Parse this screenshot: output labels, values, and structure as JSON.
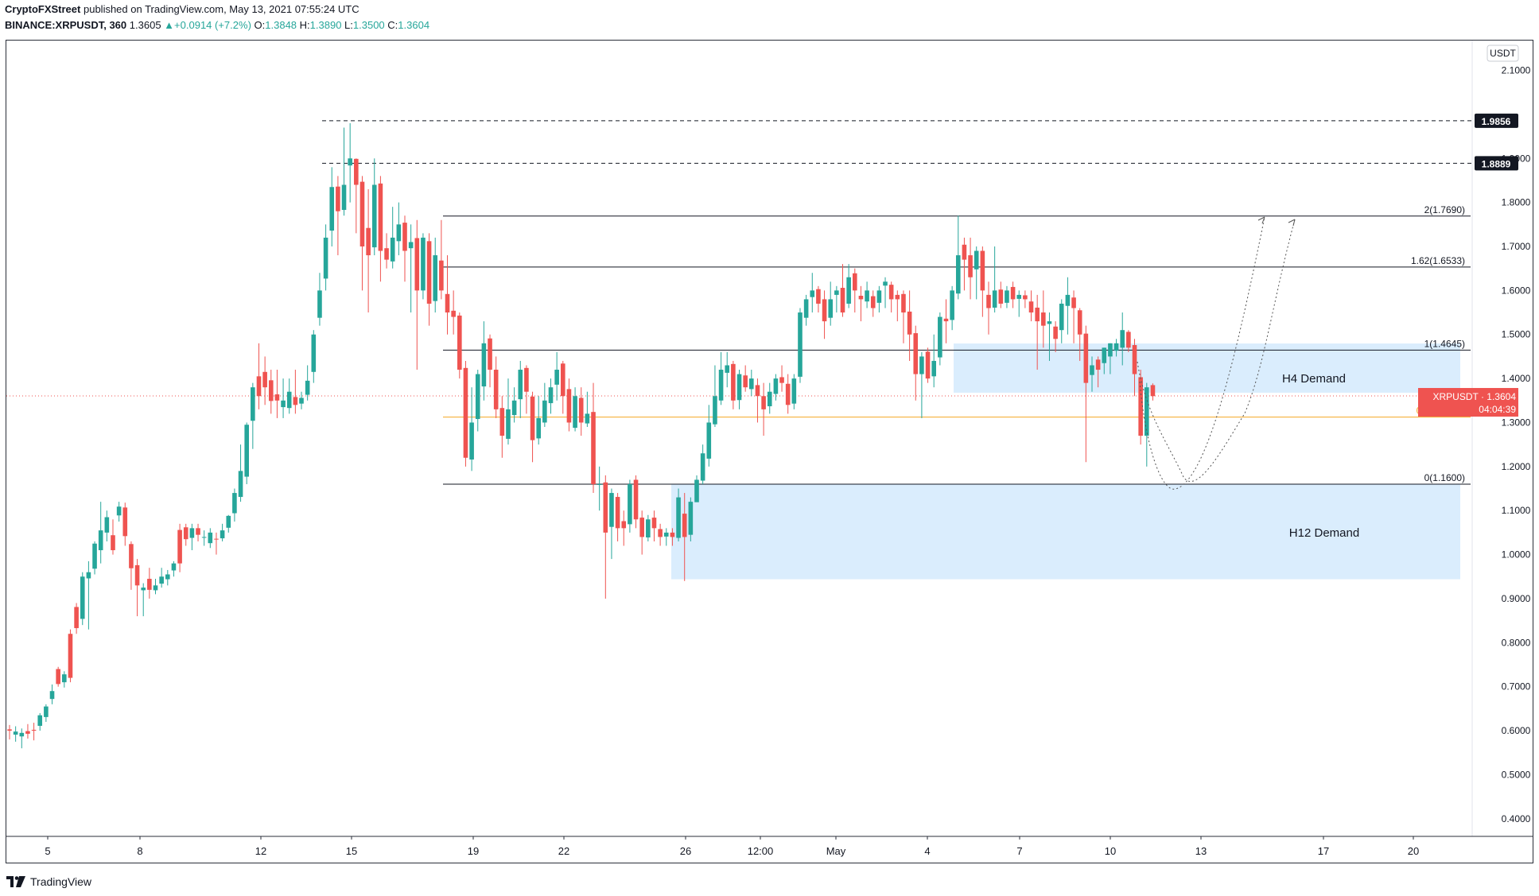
{
  "header": {
    "author": "CryptoFXStreet",
    "published": "published on TradingView.com, May 13, 2021 07:55:24 UTC",
    "symbol": "BINANCE:XRPUSDT, 360",
    "last": "1.3605",
    "change": "+0.0914 (+7.2%)",
    "o_label": "O:",
    "o": "1.3848",
    "h_label": "H:",
    "h": "1.3890",
    "l_label": "L:",
    "l": "1.3500",
    "c_label": "C:",
    "c": "1.3604"
  },
  "footer": {
    "brand": "TradingView"
  },
  "colors": {
    "up": "#26a69a",
    "down": "#ef5350",
    "zone": "#bbdefb",
    "fib05": "#f5a623"
  },
  "chart_data": {
    "type": "candlestick",
    "currency_label": "USDT",
    "y_ticks": [
      "2.1000",
      "1.9000",
      "1.8000",
      "1.7000",
      "1.6000",
      "1.5000",
      "1.4000",
      "1.3000",
      "1.2000",
      "1.1000",
      "1.0000",
      "0.9000",
      "0.8000",
      "0.7000",
      "0.6000",
      "0.5000",
      "0.4000"
    ],
    "ylim": [
      0.36,
      2.16
    ],
    "x_ticks": [
      "5",
      "8",
      "12",
      "15",
      "19",
      "22",
      "26",
      "12:00",
      "May",
      "4",
      "7",
      "10",
      "13",
      "17",
      "20"
    ],
    "price_badges": [
      {
        "label": "1.9856",
        "value": 1.9856
      },
      {
        "label": "1.8889",
        "value": 1.8889
      }
    ],
    "current_price": {
      "label": "XRPUSDT · 1.3604",
      "value": 1.3604,
      "countdown": "04:04:39"
    },
    "fib_levels": [
      {
        "label": "2(1.7690)",
        "value": 1.769
      },
      {
        "label": "1.62(1.6533)",
        "value": 1.6533
      },
      {
        "label": "1(1.4645)",
        "value": 1.4645
      },
      {
        "label": "0.5(1.3123)",
        "value": 1.3123
      },
      {
        "label": "0(1.1600)",
        "value": 1.16
      }
    ],
    "zones": [
      {
        "label": "H4 Demand",
        "top": 1.4795,
        "bottom": 1.3678
      },
      {
        "label": "H12 Demand",
        "top": 1.16,
        "bottom": 0.944
      }
    ],
    "candles": [
      [
        0.603,
        0.6,
        0.613,
        0.58
      ],
      [
        0.591,
        0.598,
        0.61,
        0.575
      ],
      [
        0.587,
        0.595,
        0.605,
        0.56
      ],
      [
        0.599,
        0.593,
        0.615,
        0.582
      ],
      [
        0.602,
        0.6,
        0.618,
        0.578
      ],
      [
        0.611,
        0.635,
        0.64,
        0.6
      ],
      [
        0.631,
        0.655,
        0.66,
        0.62
      ],
      [
        0.672,
        0.69,
        0.705,
        0.66
      ],
      [
        0.74,
        0.706,
        0.745,
        0.7
      ],
      [
        0.71,
        0.728,
        0.735,
        0.698
      ],
      [
        0.82,
        0.72,
        0.83,
        0.71
      ],
      [
        0.881,
        0.833,
        0.89,
        0.82
      ],
      [
        0.854,
        0.95,
        0.96,
        0.84
      ],
      [
        0.946,
        0.96,
        0.985,
        0.83
      ],
      [
        0.968,
        1.025,
        1.03,
        0.955
      ],
      [
        1.01,
        1.055,
        1.12,
        0.98
      ],
      [
        1.05,
        1.085,
        1.1,
        1.03
      ],
      [
        1.044,
        1.01,
        1.08,
        1.0
      ],
      [
        1.089,
        1.109,
        1.12,
        1.075
      ],
      [
        1.107,
        1.042,
        1.118,
        1.02
      ],
      [
        1.024,
        0.969,
        1.03,
        0.92
      ],
      [
        0.976,
        0.93,
        0.99,
        0.86
      ],
      [
        0.919,
        0.925,
        0.935,
        0.86
      ],
      [
        0.945,
        0.92,
        0.97,
        0.9
      ],
      [
        0.919,
        0.93,
        0.945,
        0.91
      ],
      [
        0.934,
        0.95,
        0.97,
        0.925
      ],
      [
        0.944,
        0.955,
        0.965,
        0.93
      ],
      [
        0.964,
        0.98,
        0.985,
        0.95
      ],
      [
        1.056,
        0.98,
        1.07,
        0.96
      ],
      [
        1.062,
        1.035,
        1.07,
        1.02
      ],
      [
        1.038,
        1.06,
        1.07,
        1.01
      ],
      [
        1.06,
        1.045,
        1.07,
        1.03
      ],
      [
        1.039,
        1.04,
        1.055,
        1.02
      ],
      [
        1.026,
        1.05,
        1.06,
        1.015
      ],
      [
        1.036,
        1.035,
        1.05,
        1.0
      ],
      [
        1.037,
        1.055,
        1.07,
        1.03
      ],
      [
        1.061,
        1.088,
        1.09,
        1.05
      ],
      [
        1.094,
        1.14,
        1.15,
        1.075
      ],
      [
        1.131,
        1.19,
        1.25,
        1.12
      ],
      [
        1.177,
        1.295,
        1.3,
        1.16
      ],
      [
        1.304,
        1.38,
        1.39,
        1.24
      ],
      [
        1.405,
        1.36,
        1.48,
        1.33
      ],
      [
        1.415,
        1.38,
        1.45,
        1.34
      ],
      [
        1.396,
        1.349,
        1.42,
        1.32
      ],
      [
        1.364,
        1.35,
        1.42,
        1.31
      ],
      [
        1.335,
        1.35,
        1.4,
        1.31
      ],
      [
        1.333,
        1.37,
        1.4,
        1.32
      ],
      [
        1.358,
        1.34,
        1.42,
        1.32
      ],
      [
        1.343,
        1.356,
        1.37,
        1.33
      ],
      [
        1.363,
        1.395,
        1.43,
        1.35
      ],
      [
        1.415,
        1.5,
        1.51,
        1.39
      ],
      [
        1.538,
        1.6,
        1.64,
        1.52
      ],
      [
        1.627,
        1.72,
        1.75,
        1.6
      ],
      [
        1.736,
        1.835,
        1.88,
        1.7
      ],
      [
        1.836,
        1.78,
        1.86,
        1.68
      ],
      [
        1.783,
        1.84,
        1.97,
        1.77
      ],
      [
        1.884,
        1.9,
        1.98,
        1.8
      ],
      [
        1.899,
        1.84,
        1.9,
        1.73
      ],
      [
        1.847,
        1.7,
        1.86,
        1.6
      ],
      [
        1.742,
        1.68,
        1.83,
        1.55
      ],
      [
        1.698,
        1.84,
        1.9,
        1.68
      ],
      [
        1.843,
        1.69,
        1.86,
        1.62
      ],
      [
        1.696,
        1.67,
        1.73,
        1.65
      ],
      [
        1.666,
        1.72,
        1.79,
        1.65
      ],
      [
        1.712,
        1.75,
        1.8,
        1.68
      ],
      [
        1.754,
        1.69,
        1.77,
        1.62
      ],
      [
        1.696,
        1.71,
        1.75,
        1.55
      ],
      [
        1.719,
        1.6,
        1.76,
        1.42
      ],
      [
        1.6,
        1.72,
        1.73,
        1.58
      ],
      [
        1.712,
        1.57,
        1.73,
        1.52
      ],
      [
        1.576,
        1.68,
        1.72,
        1.55
      ],
      [
        1.668,
        1.6,
        1.76,
        1.58
      ],
      [
        1.592,
        1.55,
        1.68,
        1.5
      ],
      [
        1.554,
        1.54,
        1.6,
        1.5
      ],
      [
        1.543,
        1.42,
        1.55,
        1.4
      ],
      [
        1.424,
        1.22,
        1.44,
        1.2
      ],
      [
        1.216,
        1.3,
        1.38,
        1.19
      ],
      [
        1.308,
        1.41,
        1.42,
        1.28
      ],
      [
        1.382,
        1.48,
        1.53,
        1.35
      ],
      [
        1.491,
        1.42,
        1.5,
        1.38
      ],
      [
        1.42,
        1.33,
        1.45,
        1.31
      ],
      [
        1.333,
        1.27,
        1.36,
        1.22
      ],
      [
        1.263,
        1.33,
        1.4,
        1.25
      ],
      [
        1.317,
        1.35,
        1.38,
        1.3
      ],
      [
        1.353,
        1.42,
        1.44,
        1.31
      ],
      [
        1.424,
        1.37,
        1.43,
        1.32
      ],
      [
        1.359,
        1.26,
        1.37,
        1.21
      ],
      [
        1.264,
        1.31,
        1.36,
        1.25
      ],
      [
        1.3,
        1.35,
        1.39,
        1.29
      ],
      [
        1.344,
        1.38,
        1.4,
        1.32
      ],
      [
        1.386,
        1.42,
        1.46,
        1.35
      ],
      [
        1.434,
        1.36,
        1.44,
        1.32
      ],
      [
        1.376,
        1.3,
        1.4,
        1.28
      ],
      [
        1.288,
        1.36,
        1.38,
        1.28
      ],
      [
        1.356,
        1.3,
        1.38,
        1.27
      ],
      [
        1.298,
        1.32,
        1.37,
        1.29
      ],
      [
        1.324,
        1.16,
        1.39,
        1.14
      ],
      [
        1.16,
        1.16,
        1.2,
        1.1
      ],
      [
        1.164,
        1.05,
        1.18,
        0.9
      ],
      [
        1.063,
        1.14,
        1.15,
        0.99
      ],
      [
        1.131,
        1.06,
        1.14,
        1.03
      ],
      [
        1.076,
        1.06,
        1.1,
        1.02
      ],
      [
        1.069,
        1.16,
        1.17,
        1.05
      ],
      [
        1.17,
        1.08,
        1.18,
        1.06
      ],
      [
        1.084,
        1.04,
        1.1,
        1.0
      ],
      [
        1.039,
        1.08,
        1.09,
        1.03
      ],
      [
        1.084,
        1.06,
        1.1,
        1.03
      ],
      [
        1.058,
        1.04,
        1.07,
        1.02
      ],
      [
        1.041,
        1.05,
        1.06,
        1.02
      ],
      [
        1.05,
        1.04,
        1.06,
        1.02
      ],
      [
        1.038,
        1.13,
        1.15,
        1.03
      ],
      [
        1.093,
        1.04,
        1.14,
        0.94
      ],
      [
        1.045,
        1.12,
        1.13,
        1.03
      ],
      [
        1.119,
        1.17,
        1.18,
        1.12
      ],
      [
        1.168,
        1.23,
        1.25,
        1.16
      ],
      [
        1.218,
        1.3,
        1.34,
        1.2
      ],
      [
        1.296,
        1.36,
        1.43,
        1.29
      ],
      [
        1.35,
        1.42,
        1.46,
        1.34
      ],
      [
        1.413,
        1.43,
        1.46,
        1.38
      ],
      [
        1.433,
        1.35,
        1.44,
        1.33
      ],
      [
        1.351,
        1.41,
        1.42,
        1.33
      ],
      [
        1.407,
        1.38,
        1.43,
        1.37
      ],
      [
        1.376,
        1.4,
        1.42,
        1.36
      ],
      [
        1.385,
        1.36,
        1.4,
        1.3
      ],
      [
        1.36,
        1.33,
        1.39,
        1.27
      ],
      [
        1.337,
        1.37,
        1.39,
        1.32
      ],
      [
        1.365,
        1.4,
        1.41,
        1.35
      ],
      [
        1.403,
        1.39,
        1.43,
        1.37
      ],
      [
        1.388,
        1.34,
        1.41,
        1.32
      ],
      [
        1.343,
        1.4,
        1.41,
        1.33
      ],
      [
        1.404,
        1.55,
        1.56,
        1.39
      ],
      [
        1.538,
        1.58,
        1.59,
        1.52
      ],
      [
        1.585,
        1.6,
        1.64,
        1.55
      ],
      [
        1.603,
        1.57,
        1.61,
        1.55
      ],
      [
        1.58,
        1.53,
        1.6,
        1.49
      ],
      [
        1.538,
        1.58,
        1.62,
        1.52
      ],
      [
        1.59,
        1.6,
        1.61,
        1.55
      ],
      [
        1.606,
        1.55,
        1.66,
        1.54
      ],
      [
        1.57,
        1.63,
        1.66,
        1.56
      ],
      [
        1.639,
        1.6,
        1.65,
        1.55
      ],
      [
        1.588,
        1.58,
        1.61,
        1.53
      ],
      [
        1.575,
        1.6,
        1.62,
        1.56
      ],
      [
        1.587,
        1.56,
        1.6,
        1.54
      ],
      [
        1.572,
        1.6,
        1.61,
        1.55
      ],
      [
        1.611,
        1.62,
        1.63,
        1.56
      ],
      [
        1.613,
        1.58,
        1.62,
        1.55
      ],
      [
        1.59,
        1.58,
        1.6,
        1.53
      ],
      [
        1.592,
        1.55,
        1.6,
        1.48
      ],
      [
        1.552,
        1.5,
        1.6,
        1.44
      ],
      [
        1.503,
        1.41,
        1.52,
        1.35
      ],
      [
        1.41,
        1.45,
        1.46,
        1.31
      ],
      [
        1.461,
        1.4,
        1.47,
        1.39
      ],
      [
        1.405,
        1.44,
        1.5,
        1.38
      ],
      [
        1.448,
        1.54,
        1.55,
        1.43
      ],
      [
        1.536,
        1.53,
        1.58,
        1.48
      ],
      [
        1.533,
        1.6,
        1.61,
        1.51
      ],
      [
        1.593,
        1.68,
        1.77,
        1.58
      ],
      [
        1.704,
        1.67,
        1.72,
        1.6
      ],
      [
        1.68,
        1.63,
        1.72,
        1.58
      ],
      [
        1.648,
        1.69,
        1.7,
        1.58
      ],
      [
        1.69,
        1.6,
        1.7,
        1.54
      ],
      [
        1.59,
        1.56,
        1.62,
        1.5
      ],
      [
        1.561,
        1.6,
        1.7,
        1.55
      ],
      [
        1.602,
        1.57,
        1.62,
        1.56
      ],
      [
        1.572,
        1.6,
        1.61,
        1.56
      ],
      [
        1.608,
        1.58,
        1.62,
        1.56
      ],
      [
        1.581,
        1.59,
        1.6,
        1.54
      ],
      [
        1.589,
        1.58,
        1.6,
        1.56
      ],
      [
        1.575,
        1.55,
        1.6,
        1.53
      ],
      [
        1.561,
        1.53,
        1.59,
        1.42
      ],
      [
        1.55,
        1.52,
        1.6,
        1.47
      ],
      [
        1.524,
        1.53,
        1.55,
        1.44
      ],
      [
        1.518,
        1.49,
        1.53,
        1.46
      ],
      [
        1.51,
        1.57,
        1.58,
        1.48
      ],
      [
        1.565,
        1.59,
        1.63,
        1.5
      ],
      [
        1.584,
        1.56,
        1.6,
        1.48
      ],
      [
        1.555,
        1.5,
        1.56,
        1.44
      ],
      [
        1.502,
        1.39,
        1.52,
        1.21
      ],
      [
        1.408,
        1.43,
        1.45,
        1.37
      ],
      [
        1.443,
        1.42,
        1.45,
        1.38
      ],
      [
        1.435,
        1.47,
        1.47,
        1.41
      ],
      [
        1.45,
        1.48,
        1.48,
        1.41
      ],
      [
        1.463,
        1.48,
        1.49,
        1.45
      ],
      [
        1.47,
        1.51,
        1.55,
        1.43
      ],
      [
        1.506,
        1.47,
        1.51,
        1.46
      ],
      [
        1.476,
        1.41,
        1.49,
        1.36
      ],
      [
        1.403,
        1.27,
        1.42,
        1.25
      ],
      [
        1.27,
        1.38,
        1.39,
        1.2
      ],
      [
        1.385,
        1.36,
        1.389,
        1.35
      ]
    ]
  }
}
